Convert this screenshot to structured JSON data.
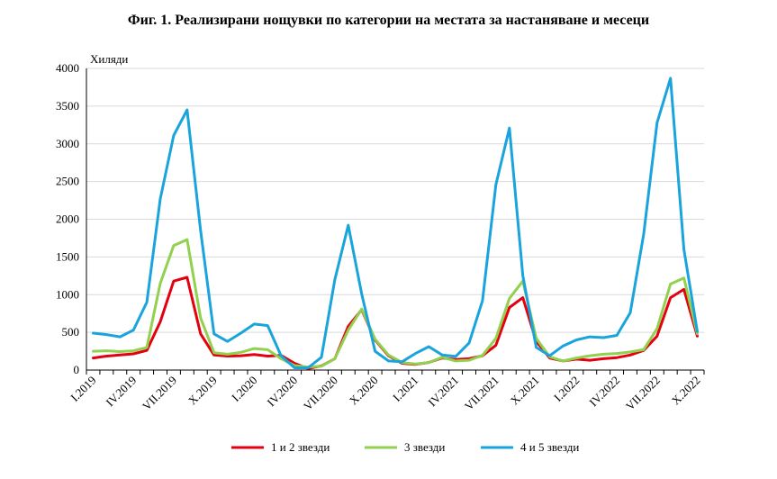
{
  "chart_data": {
    "type": "line",
    "title": "Фиг. 1. Реализирани нощувки по категории на местата за настаняване и месеци",
    "ylabel": "Хиляди",
    "xlabel": "",
    "ylim": [
      0,
      4000
    ],
    "yticks": [
      0,
      500,
      1000,
      1500,
      2000,
      2500,
      3000,
      3500,
      4000
    ],
    "x": [
      "I.2019",
      "II.2019",
      "III.2019",
      "IV.2019",
      "V.2019",
      "VI.2019",
      "VII.2019",
      "VIII.2019",
      "IX.2019",
      "X.2019",
      "XI.2019",
      "XII.2019",
      "I.2020",
      "II.2020",
      "III.2020",
      "IV.2020",
      "V.2020",
      "VI.2020",
      "VII.2020",
      "VIII.2020",
      "IX.2020",
      "X.2020",
      "XI.2020",
      "XII.2020",
      "I.2021",
      "II.2021",
      "III.2021",
      "IV.2021",
      "V.2021",
      "VI.2021",
      "VII.2021",
      "VIII.2021",
      "IX.2021",
      "X.2021",
      "XI.2021",
      "XII.2021",
      "I.2022",
      "II.2022",
      "III.2022",
      "IV.2022",
      "V.2022",
      "VI.2022",
      "VII.2022",
      "VIII.2022",
      "IX.2022",
      "X.2022"
    ],
    "xtick_labels": [
      "I.2019",
      "IV.2019",
      "VII.2019",
      "X.2019",
      "I.2020",
      "IV.2020",
      "VII.2020",
      "X.2020",
      "I.2021",
      "IV.2021",
      "VII.2021",
      "X.2021",
      "I.2022",
      "IV.2022",
      "VII.2022",
      "X.2022"
    ],
    "series": [
      {
        "name": "1 и 2 звезди",
        "color": "#e3000f",
        "values": [
          160,
          185,
          200,
          215,
          260,
          640,
          1180,
          1230,
          480,
          200,
          185,
          190,
          205,
          185,
          195,
          90,
          20,
          55,
          150,
          580,
          800,
          400,
          190,
          90,
          75,
          100,
          160,
          140,
          150,
          190,
          330,
          830,
          960,
          380,
          160,
          120,
          145,
          130,
          150,
          165,
          200,
          260,
          450,
          960,
          1070,
          450
        ]
      },
      {
        "name": "3 звезди",
        "color": "#92d050",
        "values": [
          250,
          255,
          245,
          255,
          300,
          1150,
          1650,
          1730,
          690,
          230,
          210,
          235,
          285,
          270,
          150,
          60,
          40,
          50,
          150,
          530,
          810,
          410,
          200,
          100,
          80,
          100,
          170,
          120,
          130,
          195,
          420,
          950,
          1180,
          420,
          175,
          120,
          160,
          190,
          210,
          220,
          240,
          270,
          550,
          1140,
          1220,
          480
        ]
      },
      {
        "name": "4 и 5 звезди",
        "color": "#1aa4dc",
        "values": [
          490,
          470,
          440,
          530,
          900,
          2270,
          3110,
          3450,
          1850,
          480,
          380,
          490,
          610,
          590,
          190,
          30,
          30,
          170,
          1200,
          1920,
          1010,
          250,
          120,
          110,
          220,
          310,
          200,
          180,
          360,
          920,
          2460,
          3210,
          1250,
          300,
          190,
          320,
          400,
          440,
          430,
          460,
          760,
          1800,
          3280,
          3870,
          1600,
          510
        ]
      }
    ],
    "legend": "bottom"
  }
}
